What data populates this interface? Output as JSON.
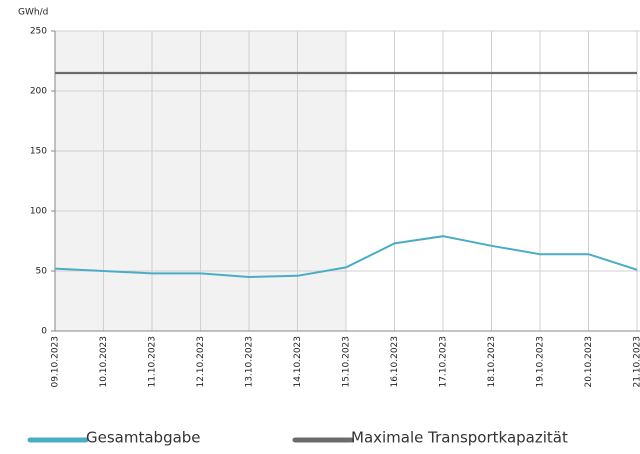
{
  "chart_data": {
    "type": "line",
    "y_label": "GWh/d",
    "categories": [
      "09.10.2023",
      "10.10.2023",
      "11.10.2023",
      "12.10.2023",
      "13.10.2023",
      "14.10.2023",
      "15.10.2023",
      "16.10.2023",
      "17.10.2023",
      "18.10.2023",
      "19.10.2023",
      "20.10.2023",
      "21.10.2023"
    ],
    "series": [
      {
        "name": "Gesamtabgabe",
        "color": "#4bacc6",
        "values": [
          52,
          50,
          48,
          48,
          45,
          46,
          53,
          73,
          79,
          71,
          64,
          64,
          51
        ]
      },
      {
        "name": "Maximale Transportkapazität",
        "color": "#6b6b6b",
        "values": [
          215,
          215,
          215,
          215,
          215,
          215,
          215,
          215,
          215,
          215,
          215,
          215,
          215
        ]
      }
    ],
    "ylim": [
      0,
      250
    ],
    "yticks": [
      0,
      50,
      100,
      150,
      200,
      250
    ],
    "grid": true,
    "shaded_x": [
      "09.10.2023",
      "15.10.2023"
    ],
    "shade_color": "#f2f2f2"
  }
}
